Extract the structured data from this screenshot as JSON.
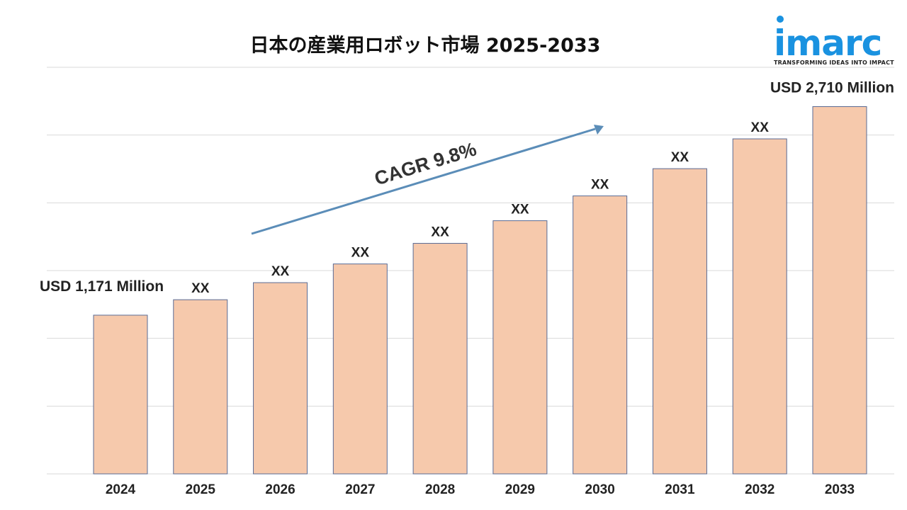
{
  "title": "日本の産業用ロボット市場 2025-2033",
  "logo": {
    "word": "imarc",
    "tagline": "TRANSFORMING IDEAS INTO IMPACT"
  },
  "colors": {
    "bar": "#F6C9AC",
    "bar_border": "#5A6B94",
    "arrow": "#5B8DB8",
    "logo": "#1A92E0",
    "grid": "#D9D9D9"
  },
  "chart_data": {
    "type": "bar",
    "categories": [
      "2024",
      "2025",
      "2026",
      "2027",
      "2028",
      "2029",
      "2030",
      "2031",
      "2032",
      "2033"
    ],
    "values": [
      1171,
      1285,
      1411,
      1549,
      1701,
      1868,
      2051,
      2252,
      2472,
      2710
    ],
    "data_labels": [
      "USD 1,171 Million",
      "XX",
      "XX",
      "XX",
      "XX",
      "XX",
      "XX",
      "XX",
      "XX",
      "USD 2,710 Million"
    ],
    "annotation": "CAGR 9.8%",
    "ylim": [
      0,
      3000
    ],
    "grid": true,
    "title": "日本の産業用ロボット市場 2025-2033",
    "xlabel": "",
    "ylabel": ""
  }
}
